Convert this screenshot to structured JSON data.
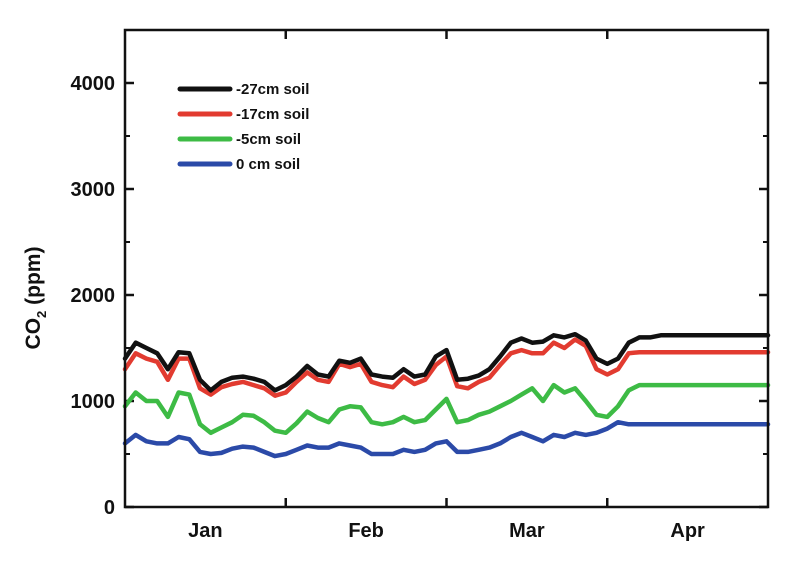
{
  "chart_data": {
    "type": "line",
    "title": "",
    "xlabel": "",
    "ylabel": "CO",
    "ylabel_subscript": "2",
    "ylabel_unit": "(ppm)",
    "ylim": [
      0,
      4500
    ],
    "yticks": [
      0,
      1000,
      2000,
      3000,
      4000
    ],
    "ytick_labels": [
      "0",
      "1000",
      "2000",
      "3000",
      "4000"
    ],
    "xlim": [
      0,
      120
    ],
    "xticks": [
      15,
      45,
      75,
      105
    ],
    "xtick_labels": [
      "Jan",
      "Feb",
      "Mar",
      "Apr"
    ],
    "x_boundaries": [
      30,
      60,
      90
    ],
    "grid": false,
    "legend_position": "top-left",
    "series": [
      {
        "name": "-27cm soil",
        "color": "#111111",
        "x": [
          0,
          2,
          4,
          6,
          8,
          10,
          12,
          14,
          16,
          18,
          20,
          22,
          24,
          26,
          28,
          30,
          32,
          34,
          36,
          38,
          40,
          42,
          44,
          46,
          48,
          50,
          52,
          54,
          56,
          58,
          60,
          62,
          64,
          66,
          68,
          70,
          72,
          74,
          76,
          78,
          80,
          82,
          84,
          86,
          88,
          90,
          92,
          94,
          96,
          98,
          100,
          102,
          104,
          106,
          108,
          110,
          112,
          114,
          116,
          118,
          120
        ],
        "values": [
          1400,
          1550,
          1500,
          1450,
          1300,
          1460,
          1450,
          1200,
          1100,
          1180,
          1220,
          1230,
          1210,
          1180,
          1100,
          1150,
          1230,
          1330,
          1250,
          1230,
          1380,
          1360,
          1400,
          1250,
          1230,
          1220,
          1300,
          1230,
          1250,
          1420,
          1480,
          1200,
          1210,
          1240,
          1300,
          1420,
          1550,
          1590,
          1550,
          1560,
          1620,
          1600,
          1630,
          1570,
          1400,
          1350,
          1400,
          1550,
          1600,
          1600,
          1620,
          1620,
          1620,
          1620,
          1620,
          1620,
          1620,
          1620,
          1620,
          1620,
          1620
        ]
      },
      {
        "name": "-17cm soil",
        "color": "#e23b30",
        "x": [
          0,
          2,
          4,
          6,
          8,
          10,
          12,
          14,
          16,
          18,
          20,
          22,
          24,
          26,
          28,
          30,
          32,
          34,
          36,
          38,
          40,
          42,
          44,
          46,
          48,
          50,
          52,
          54,
          56,
          58,
          60,
          62,
          64,
          66,
          68,
          70,
          72,
          74,
          76,
          78,
          80,
          82,
          84,
          86,
          88,
          90,
          92,
          94,
          96,
          98,
          100,
          102,
          104,
          106,
          108,
          110,
          112,
          114,
          116,
          118,
          120
        ],
        "values": [
          1300,
          1450,
          1400,
          1370,
          1200,
          1400,
          1400,
          1120,
          1060,
          1130,
          1160,
          1180,
          1150,
          1120,
          1050,
          1080,
          1180,
          1270,
          1200,
          1180,
          1350,
          1320,
          1350,
          1180,
          1150,
          1130,
          1230,
          1160,
          1200,
          1340,
          1420,
          1140,
          1120,
          1180,
          1220,
          1340,
          1450,
          1480,
          1450,
          1450,
          1550,
          1500,
          1580,
          1520,
          1300,
          1250,
          1300,
          1450,
          1460,
          1460,
          1460,
          1460,
          1460,
          1460,
          1460,
          1460,
          1460,
          1460,
          1460,
          1460,
          1460
        ]
      },
      {
        "name": "-5cm soil",
        "color": "#3dbb45",
        "x": [
          0,
          2,
          4,
          6,
          8,
          10,
          12,
          14,
          16,
          18,
          20,
          22,
          24,
          26,
          28,
          30,
          32,
          34,
          36,
          38,
          40,
          42,
          44,
          46,
          48,
          50,
          52,
          54,
          56,
          58,
          60,
          62,
          64,
          66,
          68,
          70,
          72,
          74,
          76,
          78,
          80,
          82,
          84,
          86,
          88,
          90,
          92,
          94,
          96,
          98,
          100,
          102,
          104,
          106,
          108,
          110,
          112,
          114,
          116,
          118,
          120
        ],
        "values": [
          950,
          1080,
          1000,
          1000,
          850,
          1080,
          1060,
          780,
          700,
          750,
          800,
          870,
          860,
          800,
          720,
          700,
          790,
          900,
          840,
          800,
          920,
          950,
          940,
          800,
          780,
          800,
          850,
          800,
          820,
          920,
          1020,
          800,
          820,
          870,
          900,
          950,
          1000,
          1060,
          1120,
          1000,
          1150,
          1080,
          1120,
          1000,
          870,
          850,
          950,
          1100,
          1150,
          1150,
          1150,
          1150,
          1150,
          1150,
          1150,
          1150,
          1150,
          1150,
          1150,
          1150,
          1150
        ]
      },
      {
        "name": "0 cm soil",
        "color": "#2b4aa8",
        "x": [
          0,
          2,
          4,
          6,
          8,
          10,
          12,
          14,
          16,
          18,
          20,
          22,
          24,
          26,
          28,
          30,
          32,
          34,
          36,
          38,
          40,
          42,
          44,
          46,
          48,
          50,
          52,
          54,
          56,
          58,
          60,
          62,
          64,
          66,
          68,
          70,
          72,
          74,
          76,
          78,
          80,
          82,
          84,
          86,
          88,
          90,
          92,
          94,
          96,
          98,
          100,
          102,
          104,
          106,
          108,
          110,
          112,
          114,
          116,
          118,
          120
        ],
        "values": [
          600,
          680,
          620,
          600,
          600,
          660,
          640,
          520,
          500,
          510,
          550,
          570,
          560,
          520,
          480,
          500,
          540,
          580,
          560,
          560,
          600,
          580,
          560,
          500,
          500,
          500,
          540,
          520,
          540,
          600,
          620,
          520,
          520,
          540,
          560,
          600,
          660,
          700,
          660,
          620,
          680,
          660,
          700,
          680,
          700,
          740,
          800,
          780,
          780,
          780,
          780,
          780,
          780,
          780,
          780,
          780,
          780,
          780,
          780,
          780,
          780
        ]
      }
    ]
  }
}
